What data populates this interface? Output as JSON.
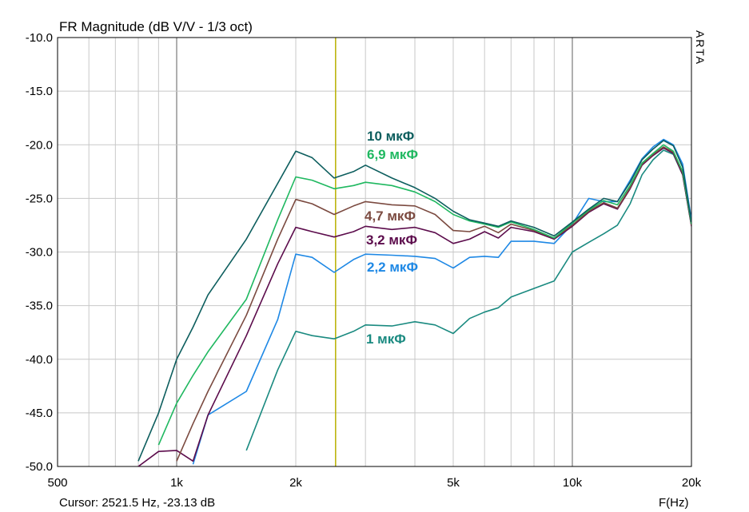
{
  "chart_data": {
    "type": "line",
    "title": "FR Magnitude (dB V/V - 1/3 oct)",
    "x_label": "F(Hz)",
    "watermark": "ARTA",
    "log_x": true,
    "grid": true,
    "cursor": {
      "x": 2521.5,
      "color": "#b8b000",
      "text": "Cursor: 2521.5 Hz, -23.13 dB"
    },
    "xlim": [
      500,
      20000
    ],
    "ylim": [
      -50,
      -10
    ],
    "xticks": [
      {
        "value": 500,
        "label": "500"
      },
      {
        "value": 1000,
        "label": "1k"
      },
      {
        "value": 2000,
        "label": "2k"
      },
      {
        "value": 5000,
        "label": "5k"
      },
      {
        "value": 10000,
        "label": "10k"
      },
      {
        "value": 20000,
        "label": "20k"
      }
    ],
    "xminor": [
      600,
      700,
      800,
      900,
      3000,
      4000,
      6000,
      7000,
      8000,
      9000
    ],
    "yticks": [
      {
        "value": -10,
        "label": "-10.0"
      },
      {
        "value": -15,
        "label": "-15.0"
      },
      {
        "value": -20,
        "label": "-20.0"
      },
      {
        "value": -25,
        "label": "-25.0"
      },
      {
        "value": -30,
        "label": "-30.0"
      },
      {
        "value": -35,
        "label": "-35.0"
      },
      {
        "value": -40,
        "label": "-40.0"
      },
      {
        "value": -45,
        "label": "-45.0"
      },
      {
        "value": -50,
        "label": "-50.0"
      }
    ],
    "x": [
      800,
      900,
      1000,
      1100,
      1200,
      1500,
      1800,
      2000,
      2200,
      2500,
      2800,
      3000,
      3500,
      4000,
      4500,
      5000,
      5500,
      6000,
      6500,
      7000,
      8000,
      9000,
      10000,
      11000,
      12000,
      13000,
      14000,
      15000,
      16000,
      17000,
      18000,
      19000,
      20000
    ],
    "series": [
      {
        "name": "10 мкФ",
        "color": "#0d5e5e",
        "values": [
          -49.5,
          -45,
          -40,
          -37,
          -34,
          -28.8,
          -23.6,
          -20.6,
          -21.2,
          -23.1,
          -22.5,
          -21.9,
          -23.1,
          -24,
          -25,
          -26.2,
          -27,
          -27.3,
          -27.6,
          -27.1,
          -27.7,
          -28.5,
          -27.2,
          -26,
          -25,
          -25.3,
          -23.5,
          -21.4,
          -20.4,
          -19.6,
          -20.1,
          -22.1,
          -27.2
        ]
      },
      {
        "name": "6,9 мкФ",
        "color": "#1fb860",
        "values": [
          null,
          -48,
          -44.1,
          -41.5,
          -39.3,
          -34.4,
          -27,
          -23,
          -23.3,
          -24.1,
          -23.8,
          -23.5,
          -23.8,
          -24.4,
          -25.3,
          -26.5,
          -27.1,
          -27.4,
          -27.7,
          -27.2,
          -27.9,
          -28.7,
          -27.3,
          -26.1,
          -25.2,
          -25.6,
          -23.8,
          -21.7,
          -20.8,
          -20,
          -20.6,
          -22.5,
          -27.4
        ]
      },
      {
        "name": "4,7 мкФ",
        "color": "#7b4a40",
        "values": [
          null,
          null,
          -49.5,
          -46,
          -43,
          -35.9,
          -28.8,
          -25.1,
          -25.5,
          -26.5,
          -25.7,
          -25.3,
          -25.6,
          -25.7,
          -26.5,
          -28,
          -28.1,
          -27.6,
          -28.2,
          -27.4,
          -28,
          -28.7,
          -27.5,
          -26.2,
          -25.4,
          -25.9,
          -24,
          -21.8,
          -20.9,
          -20.2,
          -20.7,
          -22.6,
          -27.5
        ]
      },
      {
        "name": "3,2 мкФ",
        "color": "#5c0c4c",
        "values": [
          -50,
          -48.6,
          -48.5,
          -49.5,
          -45.2,
          -37.8,
          -31.1,
          -27.7,
          -28.1,
          -28.6,
          -28.1,
          -27.6,
          -27.9,
          -27.7,
          -28.2,
          -29.2,
          -28.8,
          -28.1,
          -28.7,
          -27.7,
          -28.1,
          -28.8,
          -27.6,
          -26.3,
          -25.5,
          -26,
          -24.1,
          -21.9,
          -21,
          -20.3,
          -20.8,
          -22.8,
          -27.6
        ]
      },
      {
        "name": "2,2 мкФ",
        "color": "#1e88e5",
        "values": [
          null,
          null,
          null,
          -49.8,
          -45.2,
          -43,
          -36.3,
          -30.2,
          -30.5,
          -31.9,
          -30.7,
          -30.2,
          -30.3,
          -30.4,
          -30.6,
          -31.5,
          -30.5,
          -30.4,
          -30.5,
          -29,
          -29,
          -29.2,
          -27.4,
          -25,
          -25.3,
          -25.3,
          -23.3,
          -21.3,
          -20.2,
          -19.5,
          -20,
          -21.8,
          -27
        ]
      },
      {
        "name": "1 мкФ",
        "color": "#1a8a80",
        "values": [
          null,
          null,
          null,
          null,
          null,
          -48.5,
          -41,
          -37.4,
          -37.8,
          -38.1,
          -37.4,
          -36.8,
          -36.9,
          -36.5,
          -36.8,
          -37.6,
          -36.2,
          -35.6,
          -35.2,
          -34.2,
          -33.4,
          -32.7,
          -30,
          -29.1,
          -28.3,
          -27.5,
          -25.5,
          -22.8,
          -21.4,
          -20.5,
          -20.9,
          -22.8,
          -27.5
        ]
      }
    ]
  }
}
